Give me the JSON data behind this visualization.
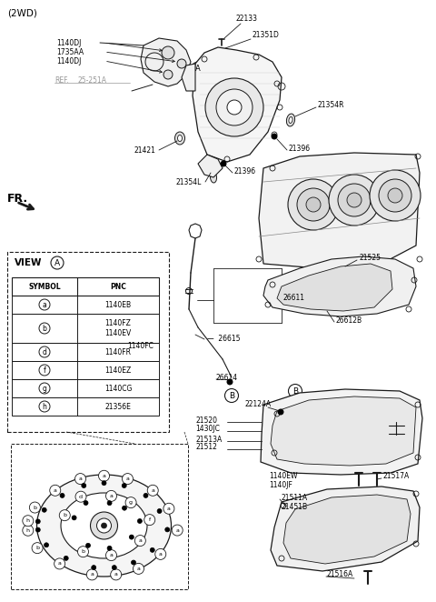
{
  "title": "(2WD)",
  "bg_color": "#ffffff",
  "line_color": "#1a1a1a",
  "fig_width": 4.8,
  "fig_height": 6.62,
  "dpi": 100,
  "view_a_label": "VIEW",
  "table_headers": [
    "SYMBOL",
    "PNC"
  ],
  "table_rows": [
    [
      "a",
      "1140EB"
    ],
    [
      "b",
      "1140FZ\n1140EV"
    ],
    [
      "d",
      "1140FR"
    ],
    [
      "f",
      "1140EZ"
    ],
    [
      "g",
      "1140CG"
    ],
    [
      "h",
      "21356E"
    ]
  ],
  "fr_label": "FR.",
  "gray": "#999999",
  "light_gray": "#cccccc"
}
